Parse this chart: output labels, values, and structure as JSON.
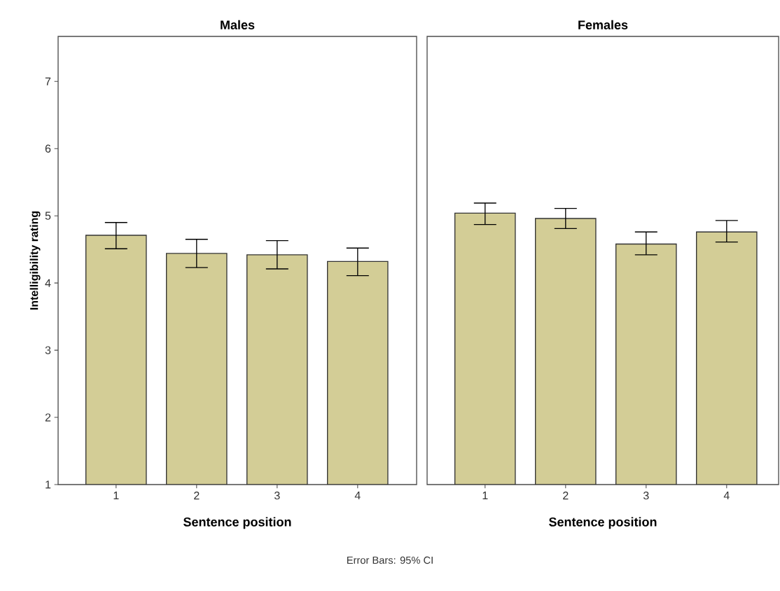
{
  "chart_data": [
    {
      "type": "bar",
      "title": "Males",
      "xlabel": "Sentence position",
      "ylabel": "Intelligibility rating",
      "categories": [
        "1",
        "2",
        "3",
        "4"
      ],
      "values": [
        4.71,
        4.44,
        4.42,
        4.32
      ],
      "errors": [
        [
          4.51,
          4.9
        ],
        [
          4.23,
          4.65
        ],
        [
          4.21,
          4.63
        ],
        [
          4.11,
          4.52
        ]
      ],
      "color": "#d3cd96",
      "ylim": [
        1,
        7.67
      ],
      "yticks": [
        1,
        2,
        3,
        4,
        5,
        6,
        7
      ],
      "annotations": [
        "Error Bars: 95% CI"
      ]
    },
    {
      "type": "bar",
      "title": "Females",
      "xlabel": "Sentence position",
      "categories": [
        "1",
        "2",
        "3",
        "4"
      ],
      "values": [
        5.04,
        4.96,
        4.58,
        4.76
      ],
      "errors": [
        [
          4.87,
          5.19
        ],
        [
          4.81,
          5.11
        ],
        [
          4.42,
          4.76
        ],
        [
          4.61,
          4.93
        ]
      ],
      "color": "#d3cd96",
      "ylim": [
        1,
        7.67
      ],
      "tick_labels": "x"
    }
  ]
}
